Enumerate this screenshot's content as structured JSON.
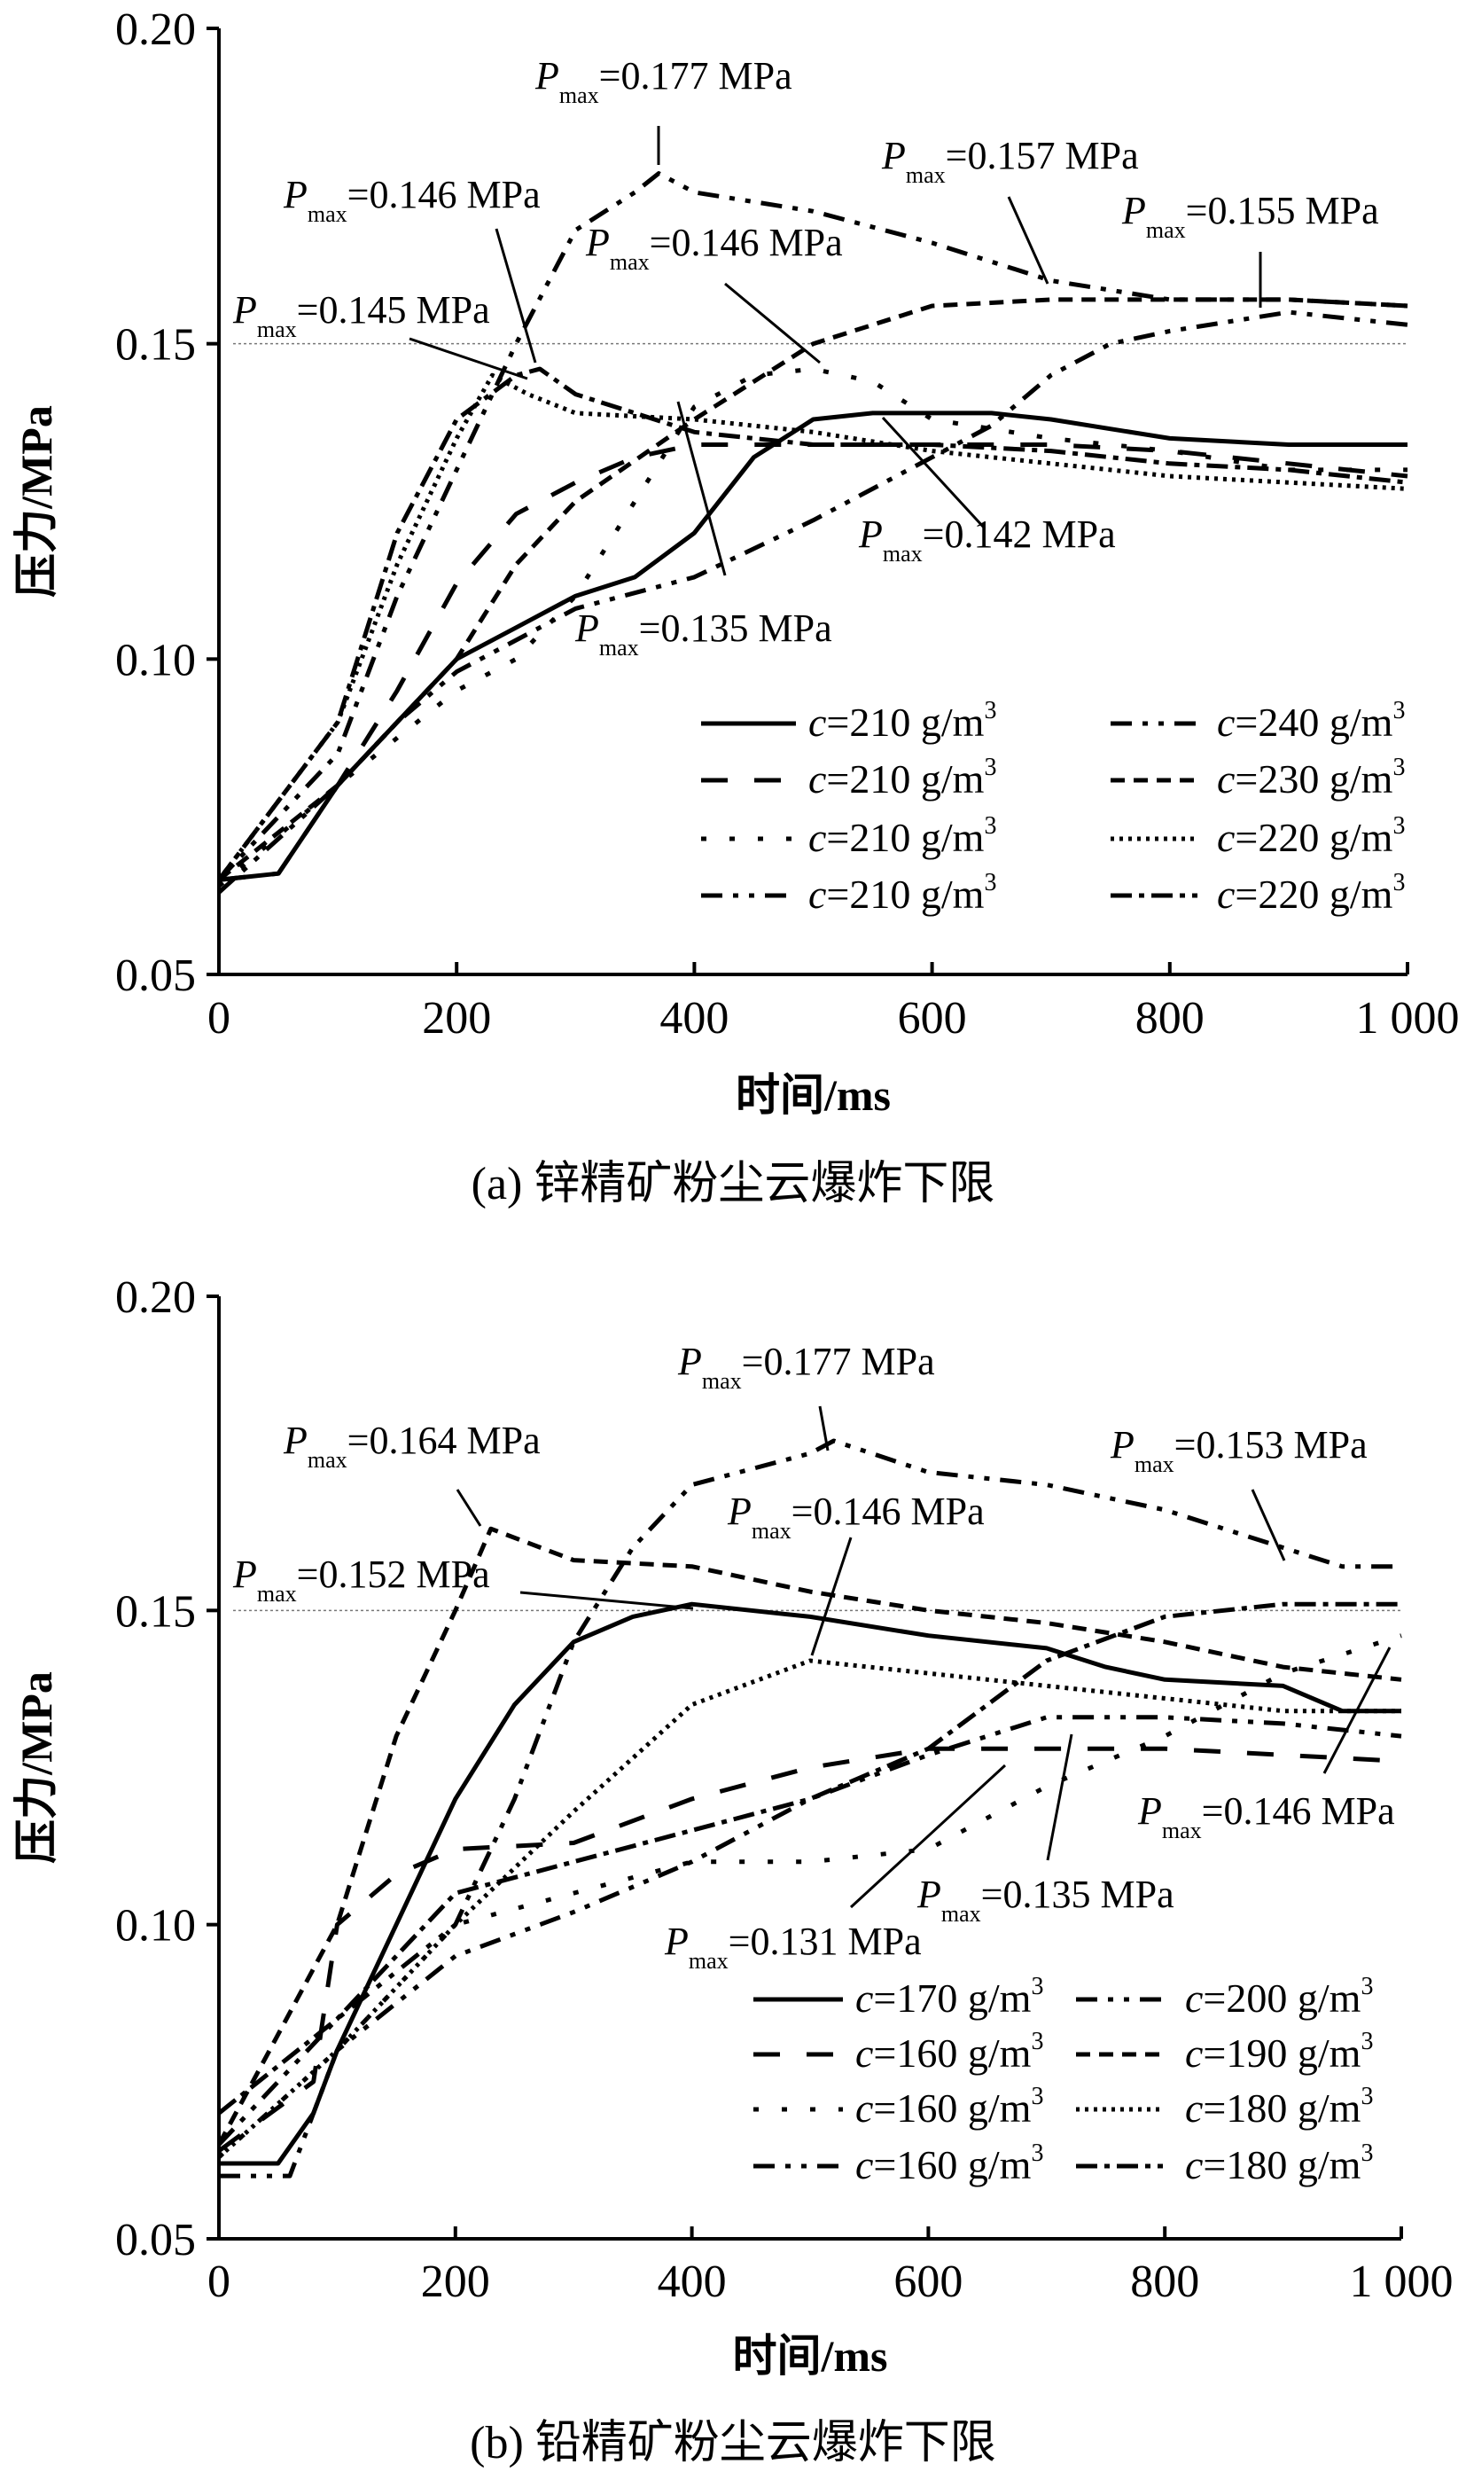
{
  "chart_data": [
    {
      "type": "line",
      "caption": "(a) 锌精矿粉尘云爆炸下限",
      "xlabel": "时间/ms",
      "ylabel": "压力/MPa",
      "xlim": [
        0,
        1000
      ],
      "ylim": [
        0.05,
        0.2
      ],
      "xticks": [
        "0",
        "200",
        "400",
        "600",
        "800",
        "1 000"
      ],
      "xtick_values": [
        0,
        200,
        400,
        600,
        800,
        1000
      ],
      "yticks": [
        "0.05",
        "0.10",
        "0.15",
        "0.20"
      ],
      "ytick_values": [
        0.05,
        0.1,
        0.15,
        0.2
      ],
      "reference_line": 0.15,
      "legend_position": "bottom-right",
      "series": [
        {
          "name": "c=210 g/m3",
          "label_prefix": "c",
          "label_rest": "=210 g/m",
          "label_sup": "3",
          "style": "solid",
          "x": [
            0,
            50,
            100,
            150,
            200,
            250,
            300,
            350,
            400,
            450,
            500,
            550,
            600,
            650,
            700,
            800,
            900,
            1000
          ],
          "y": [
            0.065,
            0.066,
            0.08,
            0.09,
            0.1,
            0.105,
            0.11,
            0.113,
            0.12,
            0.132,
            0.138,
            0.139,
            0.139,
            0.139,
            0.138,
            0.135,
            0.134,
            0.134
          ]
        },
        {
          "name": "c=210 g/m3",
          "label_prefix": "c",
          "label_rest": "=210 g/m",
          "label_sup": "3",
          "style": "long-dash",
          "x": [
            0,
            50,
            100,
            150,
            200,
            250,
            300,
            350,
            400,
            500,
            600,
            700,
            800,
            900,
            1000
          ],
          "y": [
            0.065,
            0.066,
            0.08,
            0.095,
            0.112,
            0.123,
            0.128,
            0.132,
            0.134,
            0.134,
            0.134,
            0.134,
            0.133,
            0.131,
            0.129
          ]
        },
        {
          "name": "c=210 g/m3",
          "label_prefix": "c",
          "label_rest": "=210 g/m",
          "label_sup": "3",
          "style": "sparse-dot",
          "x": [
            0,
            100,
            200,
            250,
            300,
            350,
            400,
            450,
            500,
            550,
            600,
            700,
            800,
            900,
            1000
          ],
          "y": [
            0.064,
            0.08,
            0.095,
            0.1,
            0.11,
            0.125,
            0.14,
            0.145,
            0.146,
            0.144,
            0.138,
            0.135,
            0.133,
            0.13,
            0.13
          ]
        },
        {
          "name": "c=210 g/m3",
          "label_prefix": "c",
          "label_rest": "=210 g/m",
          "label_sup": "3",
          "style": "dash-dot-dot",
          "x": [
            0,
            100,
            150,
            200,
            300,
            400,
            500,
            600,
            650,
            700,
            750,
            800,
            900,
            1000
          ],
          "y": [
            0.063,
            0.08,
            0.09,
            0.098,
            0.108,
            0.113,
            0.122,
            0.132,
            0.137,
            0.145,
            0.15,
            0.152,
            0.155,
            0.153
          ]
        },
        {
          "name": "c=240 g/m3",
          "label_prefix": "c",
          "label_rest": "=240 g/m",
          "label_sup": "3",
          "style": "dash-dot-dot",
          "x": [
            0,
            100,
            150,
            200,
            250,
            300,
            350,
            370,
            400,
            500,
            600,
            700,
            800,
            900,
            1000
          ],
          "y": [
            0.065,
            0.085,
            0.11,
            0.13,
            0.15,
            0.168,
            0.174,
            0.177,
            0.174,
            0.171,
            0.166,
            0.16,
            0.157,
            0.157,
            0.156
          ]
        },
        {
          "name": "c=230 g/m3",
          "label_prefix": "c",
          "label_rest": "=230 g/m",
          "label_sup": "3",
          "style": "short-dash",
          "x": [
            0,
            100,
            200,
            250,
            300,
            400,
            500,
            600,
            700,
            800,
            900,
            1000
          ],
          "y": [
            0.065,
            0.08,
            0.1,
            0.115,
            0.125,
            0.138,
            0.15,
            0.156,
            0.157,
            0.157,
            0.157,
            0.156
          ]
        },
        {
          "name": "c=220 g/m3",
          "label_prefix": "c",
          "label_rest": "=220 g/m",
          "label_sup": "3",
          "style": "dotted",
          "x": [
            0,
            100,
            150,
            200,
            230,
            260,
            300,
            400,
            500,
            600,
            700,
            800,
            900,
            1000
          ],
          "y": [
            0.065,
            0.09,
            0.115,
            0.135,
            0.145,
            0.142,
            0.139,
            0.138,
            0.136,
            0.133,
            0.131,
            0.129,
            0.128,
            0.127
          ]
        },
        {
          "name": "c=220 g/m3",
          "label_prefix": "c",
          "label_rest": "=220 g/m",
          "label_sup": "3",
          "style": "dash-dot",
          "x": [
            0,
            100,
            150,
            200,
            250,
            270,
            300,
            400,
            500,
            600,
            700,
            800,
            900,
            1000
          ],
          "y": [
            0.065,
            0.09,
            0.12,
            0.138,
            0.145,
            0.146,
            0.142,
            0.136,
            0.134,
            0.134,
            0.133,
            0.131,
            0.13,
            0.128
          ]
        }
      ],
      "annotations": [
        {
          "prefix": "P",
          "sub": "max",
          "text": "=0.177 MPa"
        },
        {
          "prefix": "P",
          "sub": "max",
          "text": "=0.157 MPa"
        },
        {
          "prefix": "P",
          "sub": "max",
          "text": "=0.155 MPa"
        },
        {
          "prefix": "P",
          "sub": "max",
          "text": "=0.146 MPa"
        },
        {
          "prefix": "P",
          "sub": "max",
          "text": "=0.146 MPa"
        },
        {
          "prefix": "P",
          "sub": "max",
          "text": "=0.145 MPa"
        },
        {
          "prefix": "P",
          "sub": "max",
          "text": "=0.142 MPa"
        },
        {
          "prefix": "P",
          "sub": "max",
          "text": "=0.135 MPa"
        }
      ]
    },
    {
      "type": "line",
      "caption": "(b) 铅精矿粉尘云爆炸下限",
      "xlabel": "时间/ms",
      "ylabel": "压力/MPa",
      "xlim": [
        0,
        1000
      ],
      "ylim": [
        0.05,
        0.2
      ],
      "xticks": [
        "0",
        "200",
        "400",
        "600",
        "800",
        "1 000"
      ],
      "xtick_values": [
        0,
        200,
        400,
        600,
        800,
        1000
      ],
      "yticks": [
        "0.05",
        "0.10",
        "0.15",
        "0.20"
      ],
      "ytick_values": [
        0.05,
        0.1,
        0.15,
        0.2
      ],
      "reference_line": 0.15,
      "legend_position": "bottom-right",
      "series": [
        {
          "name": "c=170 g/m3",
          "label_prefix": "c",
          "label_rest": "=170 g/m",
          "label_sup": "3",
          "style": "solid",
          "x": [
            0,
            50,
            80,
            100,
            150,
            200,
            250,
            300,
            350,
            400,
            500,
            600,
            700,
            750,
            800,
            900,
            950,
            1000
          ],
          "y": [
            0.062,
            0.062,
            0.07,
            0.08,
            0.1,
            0.12,
            0.135,
            0.145,
            0.149,
            0.151,
            0.149,
            0.146,
            0.144,
            0.141,
            0.139,
            0.138,
            0.134,
            0.134
          ]
        },
        {
          "name": "c=160 g/m3",
          "label_prefix": "c",
          "label_rest": "=160 g/m",
          "label_sup": "3",
          "style": "long-dash",
          "x": [
            0,
            80,
            100,
            150,
            200,
            300,
            400,
            500,
            600,
            700,
            800,
            1000
          ],
          "y": [
            0.064,
            0.075,
            0.1,
            0.108,
            0.112,
            0.113,
            0.12,
            0.125,
            0.128,
            0.128,
            0.128,
            0.126
          ]
        },
        {
          "name": "c=160 g/m3",
          "label_prefix": "c",
          "label_rest": "=160 g/m",
          "label_sup": "3",
          "style": "sparse-dot",
          "x": [
            0,
            100,
            200,
            300,
            400,
            500,
            600,
            700,
            800,
            900,
            1000
          ],
          "y": [
            0.063,
            0.08,
            0.1,
            0.105,
            0.11,
            0.11,
            0.112,
            0.122,
            0.13,
            0.14,
            0.146
          ]
        },
        {
          "name": "c=160 g/m3",
          "label_prefix": "c",
          "label_rest": "=160 g/m",
          "label_sup": "3",
          "style": "dash-dot-dot",
          "x": [
            0,
            60,
            100,
            200,
            300,
            400,
            500,
            600,
            700,
            800,
            900,
            1000
          ],
          "y": [
            0.06,
            0.06,
            0.08,
            0.095,
            0.102,
            0.11,
            0.12,
            0.127,
            0.133,
            0.133,
            0.132,
            0.13
          ]
        },
        {
          "name": "c=200 g/m3",
          "label_prefix": "c",
          "label_rest": "=200 g/m",
          "label_sup": "3",
          "style": "dash-dot-dot",
          "x": [
            0,
            100,
            200,
            250,
            300,
            350,
            400,
            500,
            520,
            600,
            700,
            800,
            900,
            950,
            1000
          ],
          "y": [
            0.065,
            0.085,
            0.1,
            0.12,
            0.145,
            0.16,
            0.17,
            0.175,
            0.177,
            0.172,
            0.17,
            0.166,
            0.16,
            0.157,
            0.157
          ]
        },
        {
          "name": "c=190 g/m3",
          "label_prefix": "c",
          "label_rest": "=190 g/m",
          "label_sup": "3",
          "style": "short-dash",
          "x": [
            0,
            100,
            150,
            200,
            230,
            300,
            400,
            500,
            600,
            700,
            800,
            900,
            1000
          ],
          "y": [
            0.065,
            0.1,
            0.13,
            0.15,
            0.163,
            0.158,
            0.157,
            0.153,
            0.15,
            0.148,
            0.145,
            0.141,
            0.139
          ]
        },
        {
          "name": "c=180 g/m3",
          "label_prefix": "c",
          "label_rest": "=180 g/m",
          "label_sup": "3",
          "style": "dotted",
          "x": [
            0,
            100,
            200,
            300,
            400,
            500,
            600,
            700,
            800,
            900,
            1000
          ],
          "y": [
            0.063,
            0.08,
            0.1,
            0.118,
            0.135,
            0.142,
            0.14,
            0.138,
            0.136,
            0.134,
            0.134
          ]
        },
        {
          "name": "c=180 g/m3",
          "label_prefix": "c",
          "label_rest": "=180 g/m",
          "label_sup": "3",
          "style": "dash-dot",
          "x": [
            0,
            100,
            200,
            300,
            400,
            500,
            600,
            700,
            800,
            900,
            1000
          ],
          "y": [
            0.07,
            0.085,
            0.105,
            0.11,
            0.115,
            0.12,
            0.128,
            0.142,
            0.149,
            0.151,
            0.151
          ]
        }
      ],
      "annotations": [
        {
          "prefix": "P",
          "sub": "max",
          "text": "=0.177 MPa"
        },
        {
          "prefix": "P",
          "sub": "max",
          "text": "=0.164 MPa"
        },
        {
          "prefix": "P",
          "sub": "max",
          "text": "=0.153 MPa"
        },
        {
          "prefix": "P",
          "sub": "max",
          "text": "=0.146 MPa"
        },
        {
          "prefix": "P",
          "sub": "max",
          "text": "=0.152 MPa"
        },
        {
          "prefix": "P",
          "sub": "max",
          "text": "=0.146 MPa"
        },
        {
          "prefix": "P",
          "sub": "max",
          "text": "=0.135 MPa"
        },
        {
          "prefix": "P",
          "sub": "max",
          "text": "=0.131 MPa"
        }
      ]
    }
  ]
}
